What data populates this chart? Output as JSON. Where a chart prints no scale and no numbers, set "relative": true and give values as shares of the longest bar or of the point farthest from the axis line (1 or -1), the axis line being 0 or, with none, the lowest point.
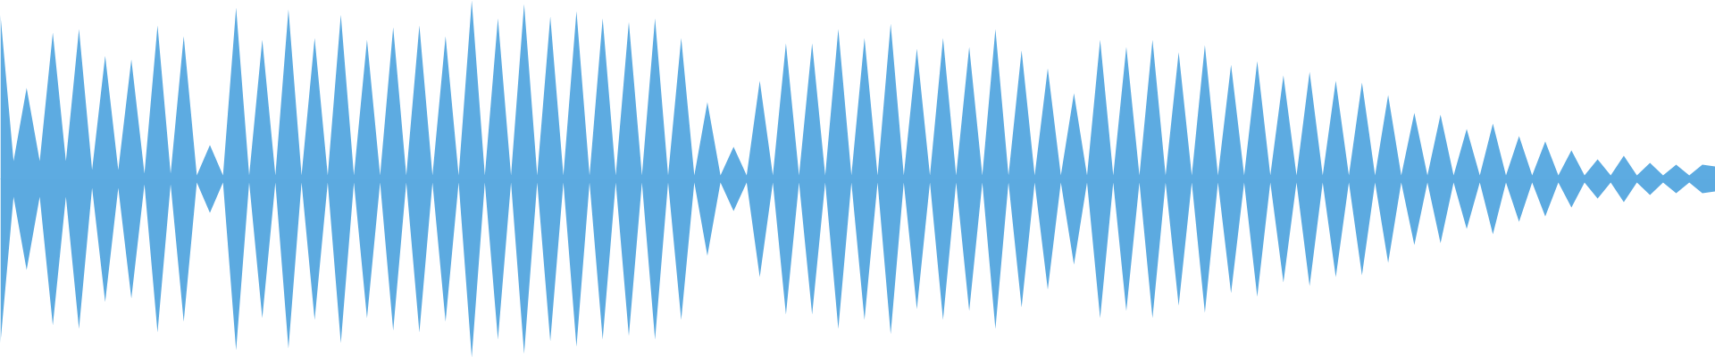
{
  "chart_data": {
    "type": "area",
    "relative": true,
    "ref_lines": [
      {
        "axis": "y",
        "value": 0,
        "color": "#5dabe1"
      }
    ],
    "categories": [
      null,
      null,
      null,
      null,
      null,
      null,
      null,
      null,
      null,
      null,
      null,
      null,
      null,
      null,
      null,
      null,
      null,
      null,
      null,
      null,
      null,
      null,
      null,
      null,
      null,
      null,
      null,
      null,
      null,
      null,
      null,
      null,
      null,
      null,
      null,
      null,
      null,
      null,
      null,
      null,
      null,
      null,
      null,
      null,
      null,
      null,
      null,
      null,
      null,
      null,
      null,
      null,
      null,
      null,
      null,
      null,
      null,
      null,
      null,
      null,
      null,
      null,
      null,
      null,
      null,
      null,
      null,
      null,
      null,
      null,
      null,
      null,
      null,
      null,
      null,
      null,
      null,
      null,
      null,
      null,
      null,
      null,
      null,
      null,
      null,
      null,
      null,
      null,
      null,
      null,
      null,
      null,
      null,
      null,
      null,
      null,
      null,
      null,
      null,
      null,
      null,
      null,
      null,
      null,
      null,
      null,
      null,
      null,
      null,
      null,
      null,
      null,
      null,
      null,
      null,
      null,
      null,
      null,
      null,
      null,
      null,
      null,
      null,
      null,
      null,
      null,
      null,
      null,
      null,
      null,
      null,
      null
    ],
    "series": [
      {
        "color": "#5dabe1",
        "values": [
          0.92,
          0.1,
          0.51,
          0.1,
          0.82,
          0.1,
          0.84,
          0.05,
          0.69,
          0.05,
          0.67,
          0.03,
          0.86,
          0.03,
          0.8,
          0.02,
          0.19,
          0.02,
          0.96,
          0.02,
          0.78,
          0.02,
          0.95,
          0.02,
          0.79,
          0.02,
          0.92,
          0.02,
          0.78,
          0.02,
          0.85,
          0.02,
          0.86,
          0.02,
          0.8,
          0.02,
          1.0,
          0.02,
          0.9,
          0.02,
          0.98,
          0.02,
          0.91,
          0.02,
          0.94,
          0.02,
          0.9,
          0.02,
          0.88,
          0.02,
          0.9,
          0.02,
          0.79,
          0.02,
          0.43,
          0.02,
          0.18,
          0.02,
          0.55,
          0.02,
          0.76,
          0.02,
          0.76,
          0.02,
          0.84,
          0.02,
          0.79,
          0.02,
          0.87,
          0.02,
          0.73,
          0.02,
          0.79,
          0.02,
          0.74,
          0.02,
          0.84,
          0.02,
          0.72,
          0.02,
          0.62,
          0.02,
          0.48,
          0.02,
          0.78,
          0.02,
          0.74,
          0.02,
          0.78,
          0.02,
          0.71,
          0.02,
          0.75,
          0.02,
          0.64,
          0.02,
          0.66,
          0.02,
          0.58,
          0.02,
          0.6,
          0.02,
          0.55,
          0.02,
          0.54,
          0.02,
          0.47,
          0.02,
          0.37,
          0.02,
          0.36,
          0.02,
          0.28,
          0.02,
          0.31,
          0.02,
          0.24,
          0.02,
          0.21,
          0.02,
          0.16,
          0.02,
          0.11,
          0.02,
          0.13,
          0.02,
          0.09,
          0.02,
          0.08,
          0.02,
          0.08,
          0.07
        ]
      },
      {
        "color": "#5caae0",
        "values": [
          -0.92,
          -0.1,
          -0.51,
          -0.1,
          -0.82,
          -0.1,
          -0.84,
          -0.05,
          -0.69,
          -0.05,
          -0.67,
          -0.03,
          -0.86,
          -0.03,
          -0.8,
          -0.02,
          -0.19,
          -0.02,
          -0.96,
          -0.02,
          -0.78,
          -0.02,
          -0.95,
          -0.02,
          -0.79,
          -0.02,
          -0.92,
          -0.02,
          -0.78,
          -0.02,
          -0.85,
          -0.02,
          -0.86,
          -0.02,
          -0.8,
          -0.02,
          -1.0,
          -0.02,
          -0.9,
          -0.02,
          -0.98,
          -0.02,
          -0.91,
          -0.02,
          -0.94,
          -0.02,
          -0.9,
          -0.02,
          -0.88,
          -0.02,
          -0.9,
          -0.02,
          -0.79,
          -0.02,
          -0.43,
          -0.02,
          -0.18,
          -0.02,
          -0.55,
          -0.02,
          -0.76,
          -0.02,
          -0.76,
          -0.02,
          -0.84,
          -0.02,
          -0.79,
          -0.02,
          -0.87,
          -0.02,
          -0.73,
          -0.02,
          -0.79,
          -0.02,
          -0.74,
          -0.02,
          -0.84,
          -0.02,
          -0.72,
          -0.02,
          -0.62,
          -0.02,
          -0.48,
          -0.02,
          -0.78,
          -0.02,
          -0.74,
          -0.02,
          -0.78,
          -0.02,
          -0.71,
          -0.02,
          -0.75,
          -0.02,
          -0.64,
          -0.02,
          -0.66,
          -0.02,
          -0.58,
          -0.02,
          -0.6,
          -0.02,
          -0.55,
          -0.02,
          -0.54,
          -0.02,
          -0.47,
          -0.02,
          -0.37,
          -0.02,
          -0.36,
          -0.02,
          -0.28,
          -0.02,
          -0.31,
          -0.02,
          -0.24,
          -0.02,
          -0.21,
          -0.02,
          -0.16,
          -0.02,
          -0.11,
          -0.02,
          -0.13,
          -0.02,
          -0.09,
          -0.02,
          -0.08,
          -0.02,
          -0.08,
          -0.07
        ]
      }
    ]
  }
}
